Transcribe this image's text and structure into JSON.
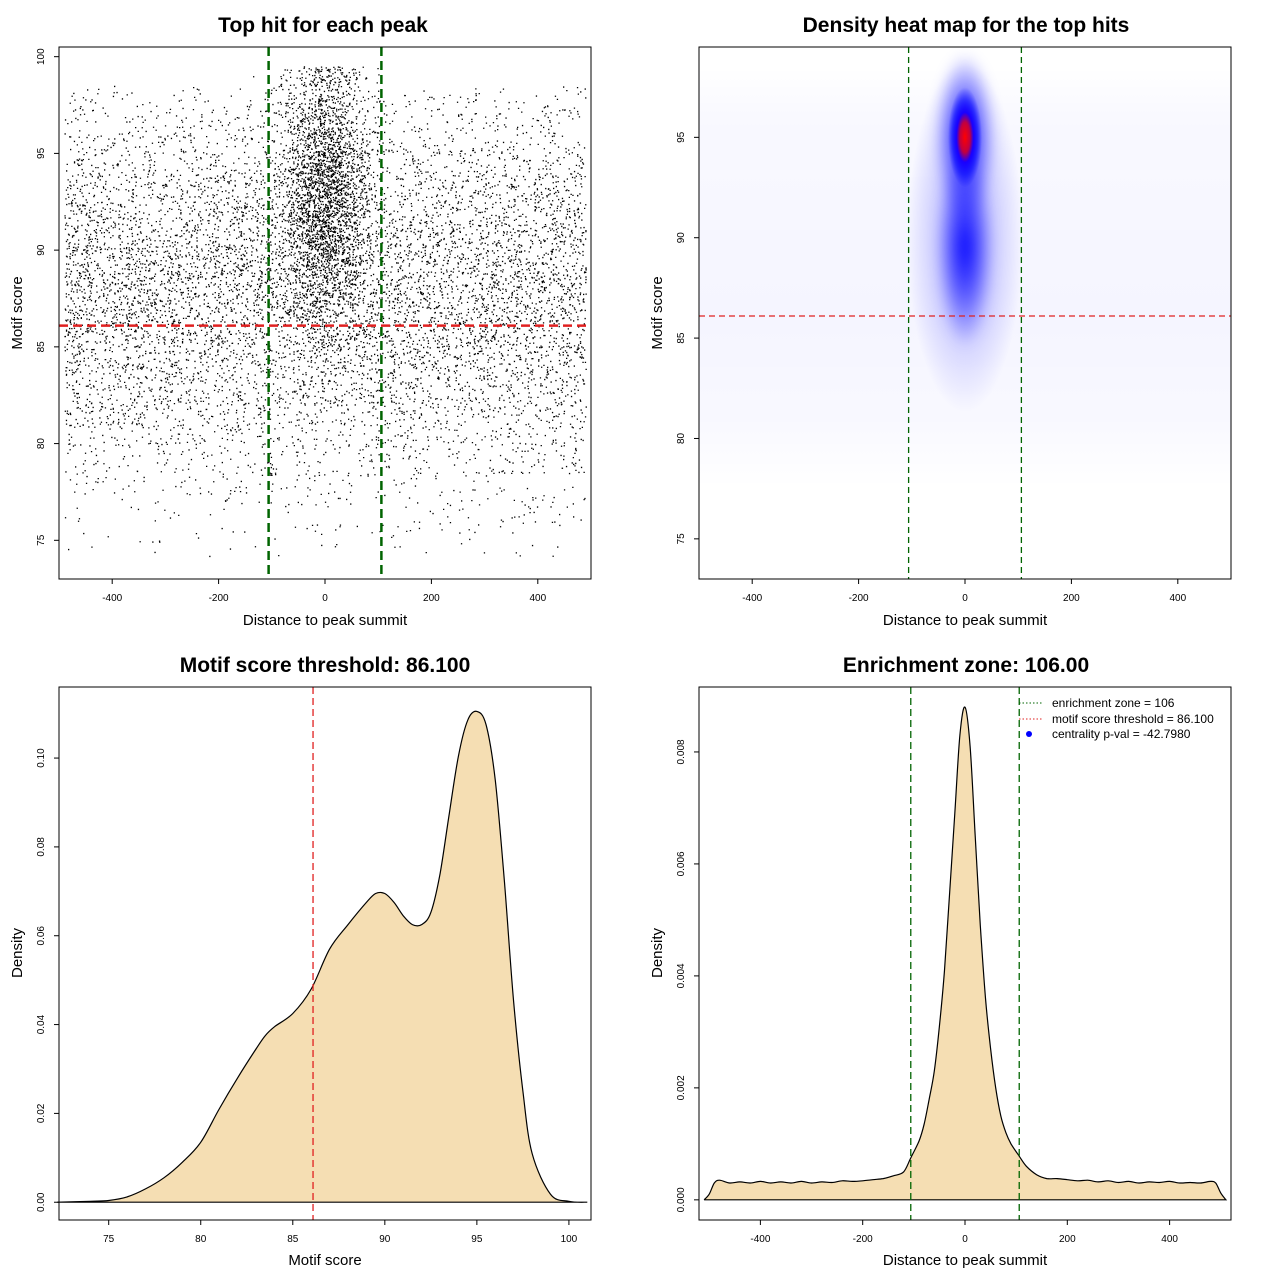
{
  "colors": {
    "point": "#000000",
    "threshold_line": "#e02020",
    "zone_line": "#006400",
    "density_fill": "#f5deb3",
    "density_stroke": "#000000",
    "heat_low": "#ffffff",
    "heat_mid": "#0000ff",
    "heat_high": "#ff0000",
    "legend_dot": "#0000ff"
  },
  "chart_data": [
    {
      "id": "scatter",
      "type": "scatter",
      "title": "Top hit for each peak",
      "xlabel": "Distance to peak summit",
      "ylabel": "Motif score",
      "xlim": [
        -500,
        500
      ],
      "ylim": [
        73,
        100.5
      ],
      "xticks": [
        -400,
        -200,
        0,
        200,
        400
      ],
      "yticks": [
        75,
        80,
        85,
        90,
        95,
        100
      ],
      "background_points": {
        "x_range": [
          -490,
          490
        ],
        "y_range": [
          74,
          98.5
        ],
        "approx_count": 9000
      },
      "central_cluster": {
        "x_center": 0,
        "x_spread": 40,
        "y_center": 93,
        "y_spread": 3.5,
        "y_max": 99.5,
        "approx_count": 9000
      },
      "hlines": [
        {
          "y": 86.1,
          "role": "threshold"
        }
      ],
      "vlines": [
        {
          "x": -106,
          "role": "zone"
        },
        {
          "x": 106,
          "role": "zone"
        }
      ]
    },
    {
      "id": "heatmap",
      "type": "heatmap",
      "title": "Density heat map for the top hits",
      "xlabel": "Distance to peak summit",
      "ylabel": "Motif score",
      "xlim": [
        -500,
        500
      ],
      "ylim": [
        73,
        99.5
      ],
      "xticks": [
        -400,
        -200,
        0,
        200,
        400
      ],
      "yticks": [
        75,
        80,
        85,
        90,
        95
      ],
      "peak": {
        "x": 0,
        "y": 95
      },
      "hlines": [
        {
          "y": 86.1,
          "role": "threshold"
        }
      ],
      "vlines": [
        {
          "x": -106,
          "role": "zone"
        },
        {
          "x": 106,
          "role": "zone"
        }
      ]
    },
    {
      "id": "score_density",
      "type": "area",
      "title": "Motif score threshold: 86.100",
      "xlabel": "Motif score",
      "ylabel": "Density",
      "xlim": [
        72.3,
        101.2
      ],
      "ylim": [
        -0.004,
        0.116
      ],
      "xticks": [
        75,
        80,
        85,
        90,
        95,
        100
      ],
      "yticks": [
        0.0,
        0.02,
        0.04,
        0.06,
        0.08,
        0.1
      ],
      "ytick_labels": [
        "0.00",
        "0.02",
        "0.04",
        "0.06",
        "0.08",
        "0.10"
      ],
      "x": [
        72.2,
        74,
        75,
        76,
        77,
        78,
        79,
        80,
        81,
        82,
        83,
        83.5,
        84,
        85,
        86,
        87,
        88,
        89,
        89.5,
        90,
        90.5,
        91,
        91.5,
        92,
        92.5,
        93,
        93.5,
        94,
        94.5,
        95,
        95.5,
        96,
        96.5,
        97,
        97.5,
        98,
        99,
        100,
        101
      ],
      "y": [
        0,
        0.0002,
        0.0004,
        0.0012,
        0.003,
        0.0055,
        0.009,
        0.0135,
        0.021,
        0.028,
        0.0345,
        0.0375,
        0.0395,
        0.0425,
        0.048,
        0.057,
        0.0625,
        0.0675,
        0.0695,
        0.0695,
        0.0675,
        0.0645,
        0.0625,
        0.0625,
        0.0652,
        0.074,
        0.0875,
        0.1005,
        0.1085,
        0.1105,
        0.1075,
        0.095,
        0.072,
        0.045,
        0.025,
        0.011,
        0.0018,
        0.0002,
        0
      ],
      "vlines": [
        {
          "x": 86.1,
          "role": "threshold"
        }
      ]
    },
    {
      "id": "distance_density",
      "type": "area",
      "title": "Enrichment zone: 106.00",
      "xlabel": "Distance to peak summit",
      "ylabel": "Density",
      "xlim": [
        -520,
        520
      ],
      "ylim": [
        -0.00036,
        0.00916
      ],
      "xticks": [
        -400,
        -200,
        0,
        200,
        400
      ],
      "yticks": [
        0,
        0.002,
        0.004,
        0.006,
        0.008
      ],
      "ytick_labels": [
        "0.000",
        "0.002",
        "0.004",
        "0.006",
        "0.008"
      ],
      "x": [
        -510,
        -500,
        -490,
        -480,
        -460,
        -440,
        -420,
        -400,
        -380,
        -360,
        -340,
        -320,
        -300,
        -280,
        -260,
        -240,
        -220,
        -200,
        -180,
        -160,
        -140,
        -120,
        -106,
        -90,
        -80,
        -70,
        -60,
        -50,
        -40,
        -30,
        -20,
        -10,
        0,
        10,
        20,
        30,
        40,
        50,
        60,
        70,
        80,
        90,
        106,
        120,
        140,
        160,
        180,
        200,
        220,
        240,
        260,
        280,
        300,
        320,
        340,
        360,
        380,
        400,
        420,
        440,
        460,
        480,
        490,
        500,
        510
      ],
      "y": [
        0,
        0.0001,
        0.0003,
        0.00035,
        0.0003,
        0.00032,
        0.0003,
        0.00033,
        0.0003,
        0.00032,
        0.0003,
        0.00033,
        0.0003,
        0.00032,
        0.00031,
        0.00034,
        0.00033,
        0.00034,
        0.00036,
        0.00038,
        0.00043,
        0.0005,
        0.00075,
        0.00105,
        0.00135,
        0.0018,
        0.0023,
        0.0031,
        0.0041,
        0.0055,
        0.0069,
        0.0083,
        0.0088,
        0.0081,
        0.0065,
        0.0049,
        0.0036,
        0.0027,
        0.002,
        0.0015,
        0.0012,
        0.001,
        0.00078,
        0.0006,
        0.00045,
        0.00038,
        0.00038,
        0.00036,
        0.00034,
        0.00035,
        0.00032,
        0.00034,
        0.00031,
        0.00033,
        0.0003,
        0.00032,
        0.00031,
        0.00033,
        0.0003,
        0.00031,
        0.0003,
        0.00033,
        0.0003,
        0.00012,
        0
      ],
      "vlines": [
        {
          "x": -106,
          "role": "zone"
        },
        {
          "x": 106,
          "role": "zone"
        }
      ],
      "legend": {
        "position": "top-right",
        "entries": [
          {
            "label": "enrichment zone = 106",
            "symbol": "dotted-line",
            "color": "#006400"
          },
          {
            "label": "motif score threshold = 86.100",
            "symbol": "dotted-line",
            "color": "#e02020"
          },
          {
            "label": "centrality p-val = -42.7980",
            "symbol": "dot",
            "color": "#0000ff"
          }
        ]
      }
    }
  ]
}
